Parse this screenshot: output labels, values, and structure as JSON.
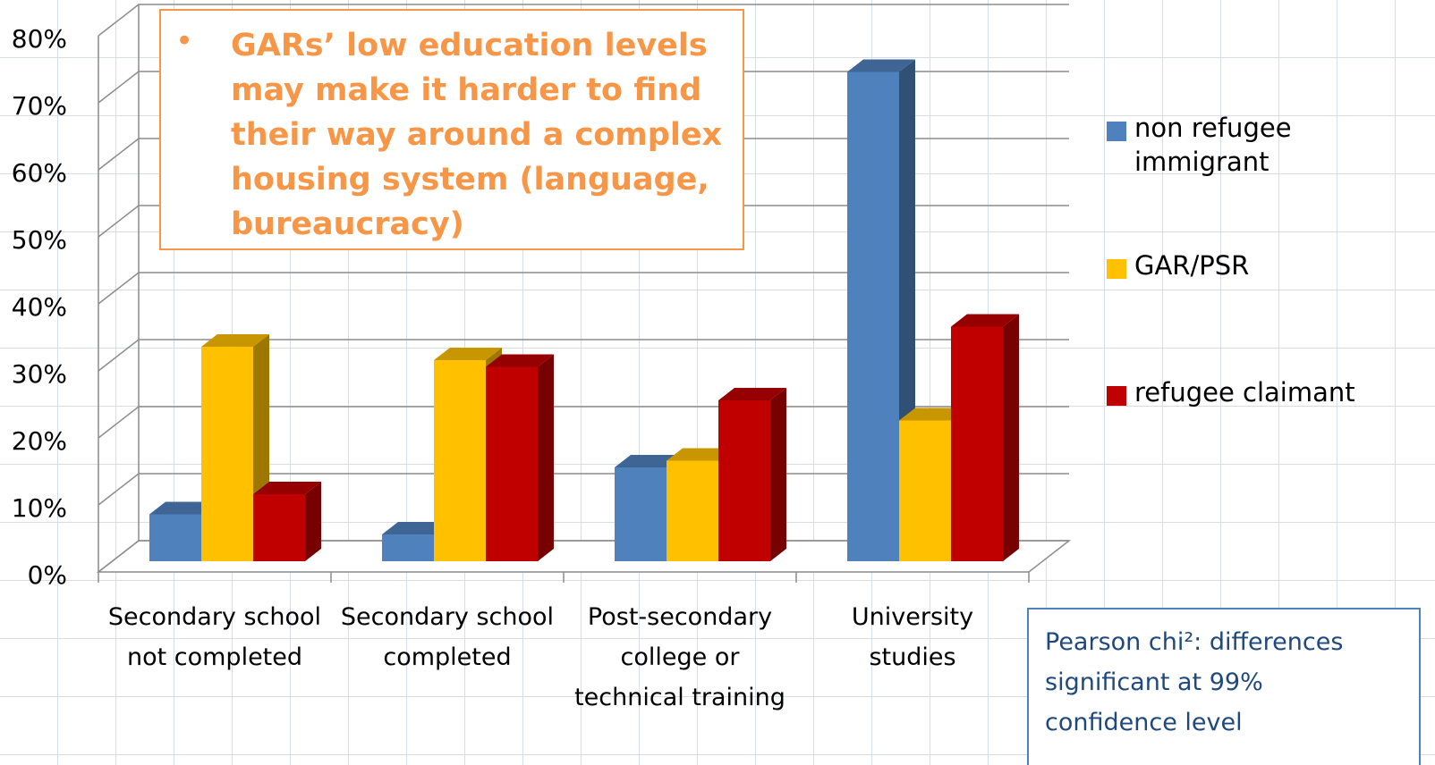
{
  "chart_data": {
    "type": "bar3d",
    "categories": [
      "Secondary school not completed",
      "Secondary school completed",
      "Post-secondary college or technical training",
      "University studies"
    ],
    "series": [
      {
        "name": "non refugee immigrant",
        "color": "#4f81bd",
        "values": [
          7,
          4,
          14,
          73
        ]
      },
      {
        "name": "GAR/PSR",
        "color": "#ffc000",
        "values": [
          32,
          30,
          15,
          21
        ]
      },
      {
        "name": "refugee claimant",
        "color": "#c00000",
        "values": [
          10,
          29,
          24,
          35
        ]
      }
    ],
    "ylim": [
      0,
      80
    ],
    "yticks": [
      {
        "value": 0,
        "label": "0%"
      },
      {
        "value": 10,
        "label": "10%"
      },
      {
        "value": 20,
        "label": "20%"
      },
      {
        "value": 30,
        "label": "30%"
      },
      {
        "value": 40,
        "label": "40%"
      },
      {
        "value": 50,
        "label": "50%"
      },
      {
        "value": 60,
        "label": "60%"
      },
      {
        "value": 70,
        "label": "70%"
      },
      {
        "value": 80,
        "label": "80%"
      }
    ],
    "grid": true,
    "legend": "right",
    "annotations": [
      "GARs’ low education levels may make it harder to find their way around a complex housing system (language, bureaucracy)",
      "Pearson chi²: differences significant at 99% confidence  level"
    ]
  }
}
